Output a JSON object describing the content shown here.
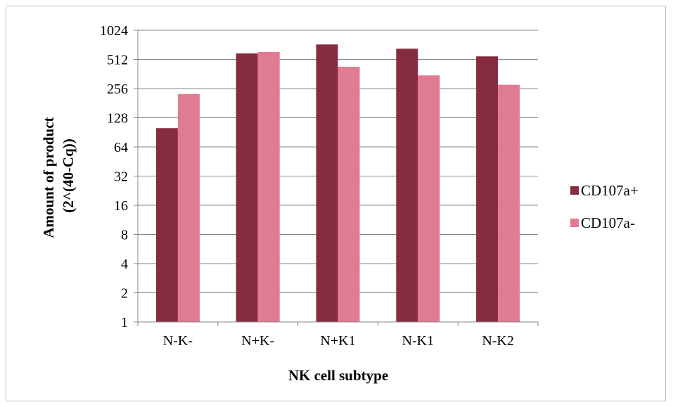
{
  "chart_data": {
    "type": "bar",
    "scale": "log2",
    "categories": [
      "N-K-",
      "N+K-",
      "N+K1",
      "N-K1",
      "N-K2"
    ],
    "series": [
      {
        "name": "CD107a+",
        "values": [
          100,
          590,
          730,
          660,
          550
        ],
        "color": "#862c3f"
      },
      {
        "name": "CD107a-",
        "values": [
          225,
          610,
          430,
          350,
          280
        ],
        "color": "#e07b92"
      }
    ],
    "yticks": [
      1,
      2,
      4,
      8,
      16,
      32,
      64,
      128,
      256,
      512,
      1024
    ],
    "ylim": [
      1,
      1024
    ],
    "ylabel_line1": "Amount of product",
    "ylabel_line2": "(2^(40-Cq))",
    "xlabel": "NK cell subtype",
    "grid": true,
    "legend_position": "right"
  },
  "colors": {
    "grid": "#868686",
    "axis": "#868686"
  }
}
